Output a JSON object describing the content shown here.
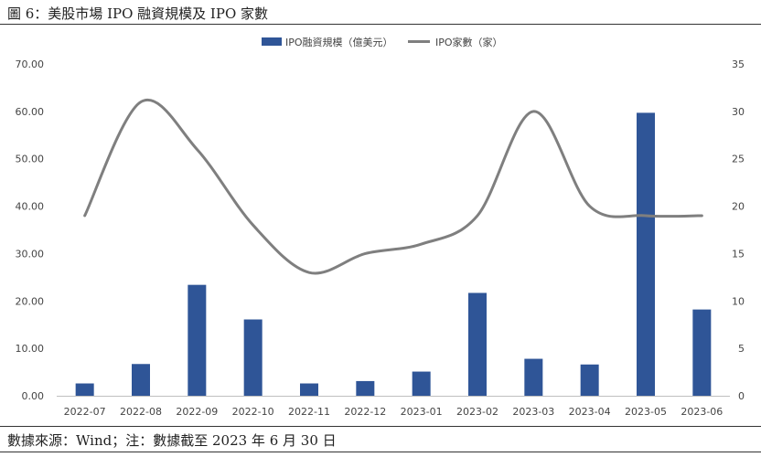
{
  "figure": {
    "title": "圖 6：美股市場 IPO 融資規模及 IPO 家數",
    "source": "數據來源：Wind；注：數據截至 2023 年 6 月 30 日"
  },
  "colors": {
    "bar": "#2f5597",
    "line": "#7f7f7f",
    "axis": "#bfbfbf"
  },
  "chart_data": {
    "type": "bar",
    "categories": [
      "2022-07",
      "2022-08",
      "2022-09",
      "2022-10",
      "2022-11",
      "2022-12",
      "2023-01",
      "2023-02",
      "2023-03",
      "2023-04",
      "2023-05",
      "2023-06"
    ],
    "series": [
      {
        "name": "IPO融資規模（億美元）",
        "type": "bar",
        "axis": "left",
        "values": [
          2.6,
          6.7,
          23.4,
          16.1,
          2.6,
          3.1,
          5.1,
          21.7,
          7.8,
          6.6,
          59.7,
          18.2
        ]
      },
      {
        "name": "IPO家數（家）",
        "type": "line",
        "axis": "right",
        "smooth": true,
        "values": [
          19,
          31,
          26,
          18,
          13,
          15,
          16,
          19,
          30,
          20,
          19,
          19
        ]
      }
    ],
    "y_left": {
      "min": 0,
      "max": 70,
      "step": 10,
      "tick_labels": [
        "0.00",
        "10.00",
        "20.00",
        "30.00",
        "40.00",
        "50.00",
        "60.00",
        "70.00"
      ]
    },
    "y_right": {
      "min": 0,
      "max": 35,
      "step": 5,
      "tick_labels": [
        "0",
        "5",
        "10",
        "15",
        "20",
        "25",
        "30",
        "35"
      ]
    },
    "legend_position": "top-center",
    "grid": false
  }
}
